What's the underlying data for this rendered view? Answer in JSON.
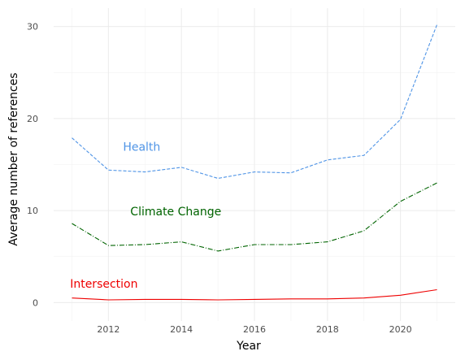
{
  "chart_data": {
    "type": "line",
    "title": "",
    "xlabel": "Year",
    "ylabel": "Average number of references",
    "x": [
      2011,
      2012,
      2013,
      2014,
      2015,
      2016,
      2017,
      2018,
      2019,
      2020,
      2021
    ],
    "xlim": [
      2010.5,
      2021.5
    ],
    "ylim": [
      -2,
      32
    ],
    "x_ticks": [
      "2012",
      "2014",
      "2016",
      "2018",
      "2020"
    ],
    "y_ticks": [
      "0",
      "10",
      "20",
      "30"
    ],
    "grid": true,
    "legend": "none",
    "series": [
      {
        "name": "Health",
        "color": "#4f94e6",
        "dash": "dashed",
        "values": [
          17.9,
          14.4,
          14.2,
          14.7,
          13.5,
          14.2,
          14.1,
          15.5,
          16.0,
          19.9,
          30.2
        ],
        "label_anchor": [
          2012.4,
          16.5
        ]
      },
      {
        "name": "Climate Change",
        "color": "#006400",
        "dash": "dashdot",
        "values": [
          8.6,
          6.2,
          6.3,
          6.6,
          5.6,
          6.3,
          6.3,
          6.6,
          7.8,
          11.0,
          13.0
        ],
        "label_anchor": [
          2012.6,
          9.5
        ]
      },
      {
        "name": "Intersection",
        "color": "#ee0000",
        "dash": "solid",
        "values": [
          0.5,
          0.3,
          0.35,
          0.35,
          0.3,
          0.35,
          0.4,
          0.4,
          0.5,
          0.8,
          1.4
        ],
        "label_anchor": [
          2010.95,
          1.6
        ]
      }
    ]
  }
}
